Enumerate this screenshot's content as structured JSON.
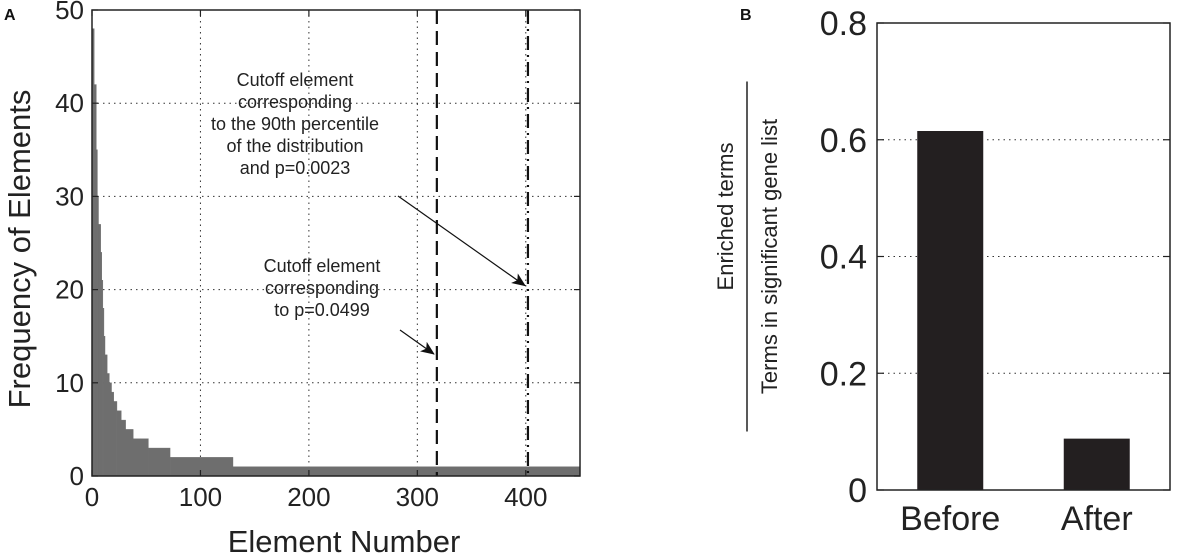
{
  "chart_data": [
    {
      "panel": "A",
      "type": "bar",
      "xlabel": "Element Number",
      "ylabel": "Frequency of Elements",
      "xlim": [
        0,
        450
      ],
      "ylim": [
        0,
        50
      ],
      "xticks": [
        0,
        100,
        200,
        300,
        400
      ],
      "yticks": [
        0,
        10,
        20,
        30,
        40,
        50
      ],
      "grid": true,
      "bar_color": "#6e6e6e",
      "bins": [
        {
          "x0": 0,
          "x1": 2,
          "y": 48
        },
        {
          "x0": 2,
          "x1": 4,
          "y": 42
        },
        {
          "x0": 4,
          "x1": 5,
          "y": 35
        },
        {
          "x0": 5,
          "x1": 6,
          "y": 30
        },
        {
          "x0": 6,
          "x1": 8,
          "y": 27
        },
        {
          "x0": 8,
          "x1": 9,
          "y": 24
        },
        {
          "x0": 9,
          "x1": 10,
          "y": 21
        },
        {
          "x0": 10,
          "x1": 11,
          "y": 18
        },
        {
          "x0": 11,
          "x1": 12,
          "y": 15
        },
        {
          "x0": 12,
          "x1": 14,
          "y": 13
        },
        {
          "x0": 14,
          "x1": 16,
          "y": 11
        },
        {
          "x0": 16,
          "x1": 18,
          "y": 10
        },
        {
          "x0": 18,
          "x1": 20,
          "y": 9
        },
        {
          "x0": 20,
          "x1": 23,
          "y": 8
        },
        {
          "x0": 23,
          "x1": 27,
          "y": 7
        },
        {
          "x0": 27,
          "x1": 31,
          "y": 6
        },
        {
          "x0": 31,
          "x1": 38,
          "y": 5
        },
        {
          "x0": 38,
          "x1": 45,
          "y": 4
        },
        {
          "x0": 45,
          "x1": 52,
          "y": 4
        },
        {
          "x0": 52,
          "x1": 72,
          "y": 3
        },
        {
          "x0": 72,
          "x1": 130,
          "y": 2
        },
        {
          "x0": 130,
          "x1": 450,
          "y": 1
        }
      ],
      "cutoffs": [
        {
          "x": 318,
          "style": "dashed"
        },
        {
          "x": 402,
          "style": "dashdot"
        }
      ],
      "annotations": [
        {
          "lines": [
            "Cutoff element",
            "corresponding",
            "to the 90th percentile",
            "of the distribution",
            "and p=0.0023"
          ],
          "arrow_to": {
            "x": 402,
            "y": 20
          }
        },
        {
          "lines": [
            "Cutoff element",
            "corresponding",
            "to p=0.0499"
          ],
          "arrow_to": {
            "x": 318,
            "y": 13
          }
        }
      ]
    },
    {
      "panel": "B",
      "type": "bar",
      "categories": [
        "Before",
        "After"
      ],
      "values": [
        0.615,
        0.088
      ],
      "ylim": [
        0,
        0.8
      ],
      "yticks": [
        "0",
        "0.2",
        "0.4",
        "0.6",
        "0.8"
      ],
      "grid": true,
      "bar_color": "#231f20",
      "ylabel_numerator": "Enriched terms",
      "ylabel_denominator": "Terms in significant gene list"
    }
  ]
}
